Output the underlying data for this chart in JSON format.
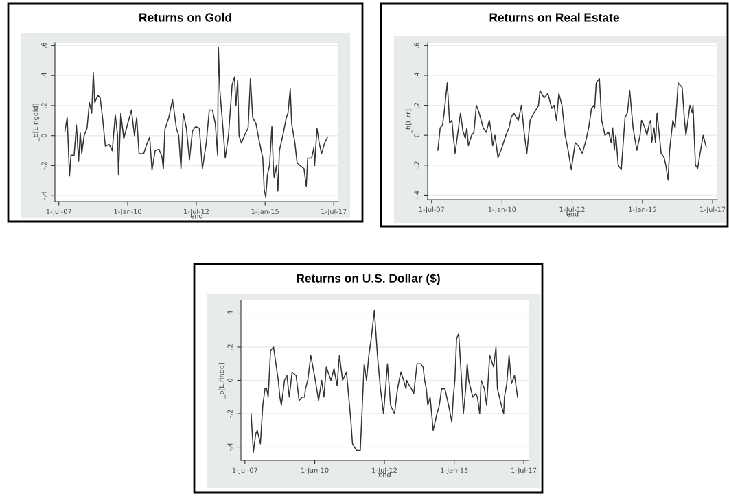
{
  "chart_data": [
    {
      "type": "line",
      "title": "Returns on Gold",
      "xlabel": "end",
      "ylabel": "_b[L.rlgold]",
      "grid": "y",
      "marker": "none",
      "line_style": "solid",
      "x": [
        "2007-09-20",
        "2007-10-20",
        "2007-11-20",
        "2007-12-10",
        "2008-01-20",
        "2008-02-20",
        "2008-03-20",
        "2008-04-10",
        "2008-05-01",
        "2008-06-01",
        "2008-07-10",
        "2008-08-10",
        "2008-09-10",
        "2008-10-01",
        "2008-10-20",
        "2008-12-01",
        "2009-01-01",
        "2009-02-01",
        "2009-03-10",
        "2009-05-01",
        "2009-06-10",
        "2009-07-20",
        "2009-08-20",
        "2009-09-01",
        "2009-10-01",
        "2009-11-10",
        "2010-01-01",
        "2010-02-20",
        "2010-04-01",
        "2010-05-01",
        "2010-06-01",
        "2010-08-01",
        "2010-09-10",
        "2010-10-20",
        "2010-11-20",
        "2011-01-01",
        "2011-02-20",
        "2011-04-01",
        "2011-04-20",
        "2011-05-10",
        "2011-07-01",
        "2011-08-20",
        "2011-10-10",
        "2011-11-10",
        "2011-12-10",
        "2012-01-10",
        "2012-02-20",
        "2012-04-01",
        "2012-05-10",
        "2012-06-20",
        "2012-08-10",
        "2012-09-20",
        "2012-11-10",
        "2012-12-20",
        "2013-02-01",
        "2013-03-10",
        "2013-04-10",
        "2013-04-20",
        "2013-05-10",
        "2013-06-20",
        "2013-07-20",
        "2013-09-01",
        "2013-10-20",
        "2013-11-20",
        "2013-12-10",
        "2014-01-01",
        "2014-01-20",
        "2014-02-20",
        "2014-04-01",
        "2014-05-20",
        "2014-06-20",
        "2014-07-20",
        "2014-09-01",
        "2014-10-20",
        "2014-12-01",
        "2014-12-20",
        "2015-01-10",
        "2015-02-01",
        "2015-03-01",
        "2015-04-01",
        "2015-04-20",
        "2015-05-01",
        "2015-06-01",
        "2015-06-20",
        "2015-07-10",
        "2015-09-01",
        "2015-10-10",
        "2015-11-01",
        "2015-12-01",
        "2015-12-20",
        "2016-02-01",
        "2016-03-01",
        "2016-04-10",
        "2016-06-01",
        "2016-07-01",
        "2016-07-20",
        "2016-09-10",
        "2016-10-10",
        "2016-10-20",
        "2016-11-20",
        "2016-12-20",
        "2017-01-20",
        "2017-03-01",
        "2017-04-10"
      ],
      "series": [
        {
          "color": "#333333",
          "values": [
            0.03,
            0.12,
            -0.27,
            -0.13,
            -0.13,
            0.07,
            -0.17,
            0.02,
            -0.12,
            0.0,
            0.05,
            0.22,
            0.15,
            0.42,
            0.22,
            0.27,
            0.25,
            0.12,
            -0.07,
            -0.06,
            -0.1,
            0.14,
            0.0,
            -0.26,
            0.15,
            -0.02,
            0.08,
            0.17,
            0.0,
            0.12,
            -0.12,
            -0.12,
            -0.06,
            -0.01,
            -0.23,
            -0.1,
            -0.09,
            -0.14,
            -0.22,
            0.04,
            0.12,
            0.24,
            0.05,
            0.0,
            -0.22,
            0.15,
            0.05,
            -0.16,
            0.03,
            0.06,
            0.05,
            -0.22,
            -0.05,
            0.17,
            0.17,
            0.08,
            -0.13,
            0.59,
            0.3,
            0.05,
            -0.15,
            0.0,
            0.34,
            0.39,
            0.2,
            0.37,
            0.0,
            -0.05,
            0.0,
            0.05,
            0.38,
            0.12,
            0.08,
            -0.05,
            -0.15,
            -0.36,
            -0.41,
            -0.26,
            -0.2,
            0.06,
            -0.2,
            -0.28,
            -0.2,
            -0.37,
            -0.1,
            0.02,
            0.12,
            0.15,
            0.31,
            0.08,
            -0.05,
            -0.18,
            -0.2,
            -0.22,
            -0.34,
            -0.15,
            -0.15,
            -0.08,
            -0.2,
            0.05,
            -0.05,
            -0.12,
            -0.05,
            -0.01
          ]
        }
      ],
      "xlim": [
        "2007-05-10",
        "2017-09-01"
      ],
      "ylim": [
        -0.44,
        0.62
      ],
      "xticks": [
        {
          "value": "2007-07-01",
          "label": "1-Jul-07"
        },
        {
          "value": "2010-01-01",
          "label": "1-Jan-10"
        },
        {
          "value": "2012-07-01",
          "label": "1-Jul-12"
        },
        {
          "value": "2015-01-01",
          "label": "1-Jan-15"
        },
        {
          "value": "2017-07-01",
          "label": "1-Jul-17"
        }
      ],
      "yticks": [
        {
          "value": -0.4,
          "label": "-.4"
        },
        {
          "value": -0.2,
          "label": "-.2"
        },
        0,
        {
          "value": 0.2,
          "label": ".2"
        },
        {
          "value": 0.4,
          "label": ".4"
        },
        {
          "value": 0.6,
          "label": ".6"
        }
      ]
    },
    {
      "type": "line",
      "title": "Returns on Real Estate",
      "xlabel": "end",
      "ylabel": "_b[L.rr]",
      "grid": "y",
      "marker": "none",
      "line_style": "solid",
      "x": [
        "2007-09-20",
        "2007-10-20",
        "2007-11-20",
        "2007-12-10",
        "2008-01-20",
        "2008-02-20",
        "2008-03-20",
        "2008-04-10",
        "2008-05-01",
        "2008-06-01",
        "2008-07-10",
        "2008-08-10",
        "2008-09-10",
        "2008-10-01",
        "2008-10-20",
        "2008-12-01",
        "2009-01-01",
        "2009-02-01",
        "2009-03-10",
        "2009-05-01",
        "2009-06-10",
        "2009-07-20",
        "2009-08-20",
        "2009-09-01",
        "2009-10-01",
        "2009-11-10",
        "2010-01-01",
        "2010-02-20",
        "2010-04-01",
        "2010-05-01",
        "2010-06-01",
        "2010-08-01",
        "2010-09-10",
        "2010-10-20",
        "2010-11-20",
        "2011-01-01",
        "2011-02-20",
        "2011-04-01",
        "2011-04-20",
        "2011-05-10",
        "2011-07-01",
        "2011-08-20",
        "2011-10-10",
        "2011-11-10",
        "2011-12-10",
        "2012-01-10",
        "2012-02-20",
        "2012-04-01",
        "2012-05-10",
        "2012-06-20",
        "2012-08-10",
        "2012-09-20",
        "2012-11-10",
        "2012-12-20",
        "2013-02-01",
        "2013-03-10",
        "2013-04-10",
        "2013-04-20",
        "2013-05-10",
        "2013-06-20",
        "2013-07-20",
        "2013-09-01",
        "2013-10-20",
        "2013-11-20",
        "2013-12-10",
        "2014-01-01",
        "2014-01-20",
        "2014-02-20",
        "2014-04-01",
        "2014-05-20",
        "2014-06-20",
        "2014-07-20",
        "2014-09-01",
        "2014-10-20",
        "2014-12-01",
        "2014-12-20",
        "2015-01-10",
        "2015-02-01",
        "2015-03-01",
        "2015-04-01",
        "2015-04-20",
        "2015-05-01",
        "2015-06-01",
        "2015-06-20",
        "2015-07-10",
        "2015-09-01",
        "2015-10-10",
        "2015-11-01",
        "2015-12-01",
        "2015-12-20",
        "2016-02-01",
        "2016-03-01",
        "2016-04-10",
        "2016-06-01",
        "2016-07-01",
        "2016-07-20",
        "2016-09-10",
        "2016-10-10",
        "2016-10-20",
        "2016-11-20",
        "2016-12-20",
        "2017-01-20",
        "2017-03-01",
        "2017-04-10"
      ],
      "series": [
        {
          "color": "#333333",
          "values": [
            -0.1,
            0.05,
            0.07,
            0.15,
            0.35,
            0.08,
            0.1,
            -0.02,
            -0.12,
            0.0,
            0.15,
            0.03,
            -0.02,
            0.05,
            -0.07,
            0.0,
            0.02,
            0.2,
            0.15,
            0.05,
            0.02,
            0.1,
            0.0,
            -0.07,
            0.0,
            -0.15,
            -0.08,
            0.0,
            0.05,
            0.12,
            0.15,
            0.1,
            0.2,
            0.0,
            -0.12,
            0.1,
            0.15,
            0.18,
            0.2,
            0.3,
            0.25,
            0.28,
            0.18,
            0.2,
            0.1,
            0.28,
            0.2,
            0.0,
            -0.1,
            -0.23,
            -0.05,
            -0.07,
            -0.12,
            -0.05,
            0.05,
            0.18,
            0.2,
            0.18,
            0.35,
            0.38,
            0.1,
            0.0,
            0.02,
            -0.05,
            0.05,
            -0.1,
            0.0,
            -0.2,
            -0.23,
            0.12,
            0.15,
            0.3,
            0.05,
            -0.1,
            0.0,
            0.1,
            0.08,
            0.05,
            0.0,
            0.08,
            0.1,
            -0.05,
            0.05,
            -0.05,
            0.15,
            -0.12,
            -0.15,
            -0.2,
            -0.3,
            -0.1,
            0.1,
            0.05,
            0.35,
            0.32,
            0.1,
            0.0,
            0.2,
            0.15,
            0.2,
            -0.2,
            -0.22,
            -0.12,
            0.0,
            -0.08
          ]
        }
      ],
      "xlim": [
        "2007-05-10",
        "2017-09-01"
      ],
      "ylim": [
        -0.43,
        0.62
      ],
      "xticks": [
        {
          "value": "2007-07-01",
          "label": "1-Jul-07"
        },
        {
          "value": "2010-01-01",
          "label": "1-Jan-10"
        },
        {
          "value": "2012-07-01",
          "label": "1-Jul-12"
        },
        {
          "value": "2015-01-01",
          "label": "1-Jan-15"
        },
        {
          "value": "2017-07-01",
          "label": "1-Jul-17"
        }
      ],
      "yticks": [
        {
          "value": -0.4,
          "label": "-.4"
        },
        {
          "value": -0.2,
          "label": "-.2"
        },
        0,
        {
          "value": 0.2,
          "label": ".2"
        },
        {
          "value": 0.4,
          "label": ".4"
        },
        {
          "value": 0.6,
          "label": ".6"
        }
      ]
    },
    {
      "type": "line",
      "title": "Returns on U.S. Dollar ($)",
      "xlabel": "end",
      "ylabel": "_b[L.rindo]",
      "grid": "y",
      "marker": "none",
      "line_style": "solid",
      "x": [
        "2007-09-20",
        "2007-10-20",
        "2007-11-20",
        "2007-12-10",
        "2008-01-20",
        "2008-02-20",
        "2008-03-20",
        "2008-04-10",
        "2008-05-01",
        "2008-06-01",
        "2008-07-10",
        "2008-08-10",
        "2008-09-10",
        "2008-10-01",
        "2008-10-20",
        "2008-12-01",
        "2009-01-01",
        "2009-02-01",
        "2009-03-10",
        "2009-05-01",
        "2009-06-10",
        "2009-07-20",
        "2009-08-20",
        "2009-09-01",
        "2009-10-01",
        "2009-11-10",
        "2010-01-01",
        "2010-02-20",
        "2010-04-01",
        "2010-05-01",
        "2010-06-01",
        "2010-08-01",
        "2010-09-10",
        "2010-10-20",
        "2010-11-20",
        "2011-01-01",
        "2011-02-20",
        "2011-04-01",
        "2011-04-20",
        "2011-05-10",
        "2011-07-01",
        "2011-08-20",
        "2011-10-10",
        "2011-11-10",
        "2011-12-10",
        "2012-01-10",
        "2012-02-20",
        "2012-04-01",
        "2012-05-10",
        "2012-06-20",
        "2012-08-10",
        "2012-09-20",
        "2012-11-10",
        "2012-12-20",
        "2013-02-01",
        "2013-03-10",
        "2013-04-10",
        "2013-04-20",
        "2013-05-10",
        "2013-06-20",
        "2013-07-20",
        "2013-09-01",
        "2013-10-20",
        "2013-11-20",
        "2013-12-10",
        "2014-01-01",
        "2014-01-20",
        "2014-02-20",
        "2014-04-01",
        "2014-05-20",
        "2014-06-20",
        "2014-07-20",
        "2014-09-01",
        "2014-10-20",
        "2014-12-01",
        "2014-12-20",
        "2015-01-10",
        "2015-02-01",
        "2015-03-01",
        "2015-04-01",
        "2015-04-20",
        "2015-05-01",
        "2015-06-01",
        "2015-06-20",
        "2015-07-10",
        "2015-09-01",
        "2015-10-10",
        "2015-11-01",
        "2015-12-01",
        "2015-12-20",
        "2016-02-01",
        "2016-03-01",
        "2016-04-10",
        "2016-06-01",
        "2016-07-01",
        "2016-07-20",
        "2016-09-10",
        "2016-10-10",
        "2016-10-20",
        "2016-11-20",
        "2016-12-20",
        "2017-01-20",
        "2017-03-01",
        "2017-04-10"
      ],
      "series": [
        {
          "color": "#333333",
          "values": [
            -0.2,
            -0.43,
            -0.32,
            -0.3,
            -0.38,
            -0.15,
            -0.05,
            -0.05,
            -0.1,
            0.18,
            0.2,
            0.1,
            0.0,
            -0.1,
            -0.15,
            0.0,
            0.03,
            -0.1,
            0.05,
            0.03,
            -0.12,
            -0.1,
            -0.1,
            -0.05,
            0.0,
            0.15,
            0.02,
            -0.12,
            0.0,
            -0.1,
            0.08,
            0.0,
            0.07,
            -0.03,
            0.15,
            0.0,
            0.05,
            -0.15,
            -0.25,
            -0.38,
            -0.42,
            -0.42,
            0.1,
            0.0,
            0.15,
            0.25,
            0.42,
            0.15,
            -0.05,
            -0.2,
            0.1,
            -0.15,
            -0.2,
            -0.05,
            0.05,
            0.0,
            -0.05,
            0.0,
            -0.02,
            -0.05,
            -0.08,
            0.1,
            0.1,
            0.08,
            0.0,
            -0.05,
            -0.15,
            -0.1,
            -0.3,
            -0.2,
            -0.15,
            -0.05,
            -0.05,
            -0.15,
            -0.25,
            -0.1,
            0.0,
            0.25,
            0.28,
            0.05,
            -0.1,
            -0.2,
            -0.05,
            0.1,
            0.0,
            -0.1,
            -0.08,
            -0.1,
            -0.2,
            0.0,
            -0.05,
            -0.15,
            0.15,
            0.08,
            0.2,
            -0.05,
            -0.15,
            -0.2,
            -0.1,
            -0.02,
            0.15,
            -0.02,
            0.03,
            -0.1
          ]
        }
      ],
      "xlim": [
        "2007-05-10",
        "2017-09-01"
      ],
      "ylim": [
        -0.48,
        0.48
      ],
      "xticks": [
        {
          "value": "2007-07-01",
          "label": "1-Jul-07"
        },
        {
          "value": "2010-01-01",
          "label": "1-Jan-10"
        },
        {
          "value": "2012-07-01",
          "label": "1-Jul-12"
        },
        {
          "value": "2015-01-01",
          "label": "1-Jan-15"
        },
        {
          "value": "2017-07-01",
          "label": "1-Jul-17"
        }
      ],
      "yticks": [
        {
          "value": -0.4,
          "label": "-.4"
        },
        {
          "value": -0.2,
          "label": "-.2"
        },
        0,
        {
          "value": 0.2,
          "label": ".2"
        },
        {
          "value": 0.4,
          "label": ".4"
        }
      ]
    }
  ]
}
